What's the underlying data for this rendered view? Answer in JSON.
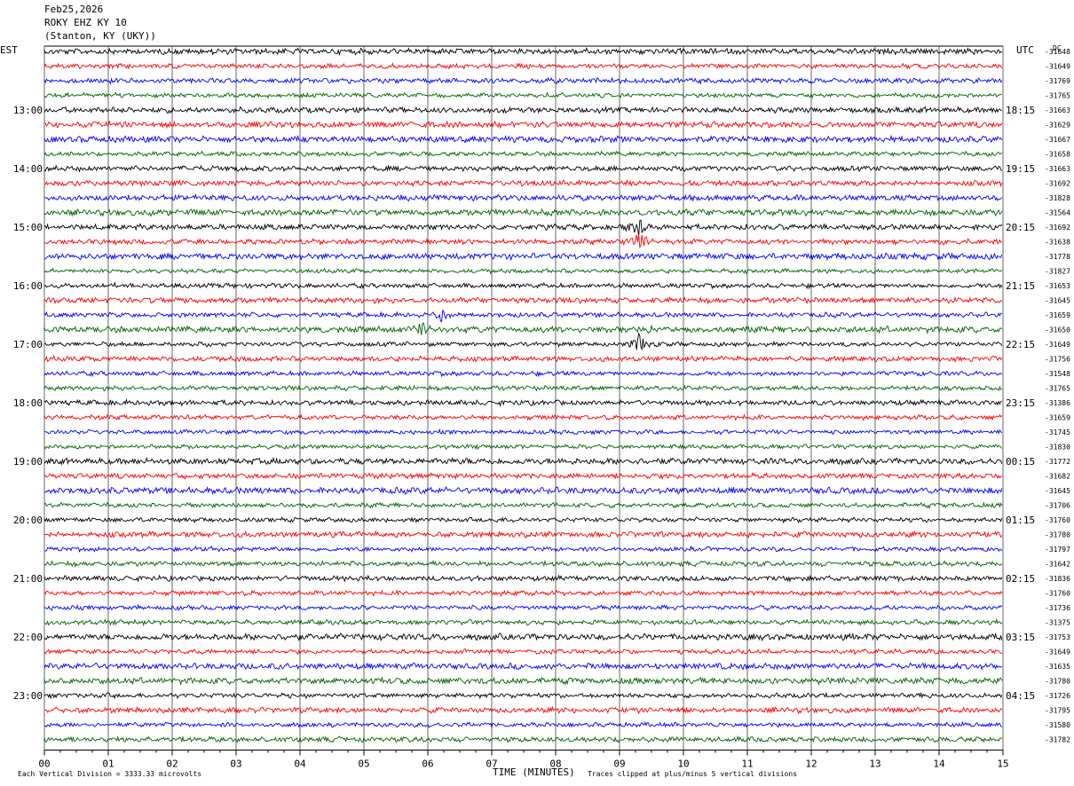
{
  "header": {
    "date": "Feb25,2026",
    "station": "ROKY EHZ KY 10",
    "location": "(Stanton, KY (UKY))"
  },
  "chart_data": {
    "type": "line",
    "title": "ROKY EHZ KY 10",
    "left_axis_label": "EST",
    "right_axis_label": "UTC",
    "dc_header": "DC",
    "xlabel": "TIME (MINUTES)",
    "x_range": [
      0,
      15
    ],
    "x_ticks": [
      "00",
      "01",
      "02",
      "03",
      "04",
      "05",
      "06",
      "07",
      "08",
      "09",
      "10",
      "11",
      "12",
      "13",
      "14",
      "15"
    ],
    "left_hour_labels": [
      "13:00",
      "14:00",
      "15:00",
      "16:00",
      "17:00",
      "18:00",
      "19:00",
      "20:00",
      "21:00",
      "22:00",
      "23:00"
    ],
    "right_hour_labels": [
      "18:15",
      "19:15",
      "20:15",
      "21:15",
      "22:15",
      "23:15",
      "00:15",
      "01:15",
      "02:15",
      "03:15",
      "04:15"
    ],
    "trace_colors": [
      "#000000",
      "#ff0000",
      "#0000ff",
      "#006400"
    ],
    "dc_offsets": [
      "-31648",
      "-31649",
      "-31769",
      "-31765",
      "-31663",
      "-31629",
      "-31667",
      "-31658",
      "-31663",
      "-31692",
      "-31828",
      "-31564",
      "-31692",
      "-31638",
      "-31778",
      "-31827",
      "-31653",
      "-31645",
      "-31659",
      "-31650",
      "-31649",
      "-31756",
      "-31548",
      "-31765",
      "-31386",
      "-31659",
      "-31745",
      "-31830",
      "-31772",
      "-31682",
      "-31645",
      "-31706",
      "-31760",
      "-31780",
      "-31797",
      "-31642",
      "-31836",
      "-31760",
      "-31736",
      "-31375",
      "-31753",
      "-31649",
      "-31635",
      "-31780",
      "-31726",
      "-31795",
      "-31580",
      "-31782"
    ],
    "events": [
      {
        "trace": 12,
        "minute": 9.3,
        "amplitude": "large"
      },
      {
        "trace": 13,
        "minute": 9.3,
        "amplitude": "large"
      },
      {
        "trace": 18,
        "minute": 6.2,
        "amplitude": "medium"
      },
      {
        "trace": 19,
        "minute": 5.9,
        "amplitude": "medium"
      },
      {
        "trace": 19,
        "minute": 9.5,
        "amplitude": "medium"
      },
      {
        "trace": 20,
        "minute": 9.3,
        "amplitude": "large"
      }
    ],
    "scale_note": "Each Vertical Division = 3333.33 microvolts",
    "clip_note": "Traces clipped at plus/minus 5 vertical divisions"
  }
}
